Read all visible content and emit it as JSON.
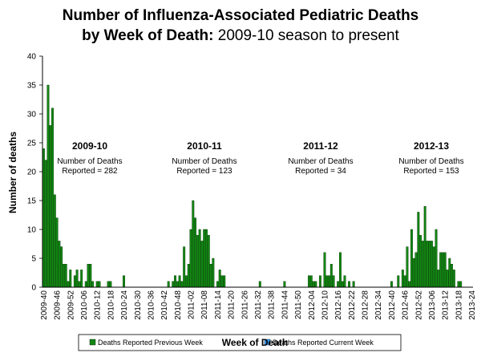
{
  "chart_data": {
    "type": "bar",
    "title": "Number of Influenza-Associated Pediatric Deaths",
    "subtitle_bold": "by Week of Death:",
    "subtitle": "2009-10 season to present",
    "x_label": "Week of Death",
    "y_label": "Number of deaths",
    "ylim": [
      0,
      40
    ],
    "yticks": [
      0,
      5,
      10,
      15,
      20,
      25,
      30,
      35,
      40
    ],
    "grid": false,
    "color": "#128712",
    "categories": [
      "2009-40",
      null,
      null,
      null,
      null,
      null,
      "2009-46",
      null,
      null,
      null,
      null,
      null,
      "2009-52",
      null,
      null,
      null,
      null,
      null,
      "2010-06",
      null,
      null,
      null,
      null,
      null,
      "2010-12",
      null,
      null,
      null,
      null,
      null,
      "2010-18",
      null,
      null,
      null,
      null,
      null,
      "2010-24",
      null,
      null,
      null,
      null,
      null,
      "2010-30",
      null,
      null,
      null,
      null,
      null,
      "2010-36",
      null,
      null,
      null,
      null,
      null,
      "2010-42",
      null,
      null,
      null,
      null,
      null,
      "2010-48",
      null,
      null,
      null,
      null,
      null,
      "2011-02",
      null,
      null,
      null,
      null,
      null,
      "2011-08",
      null,
      null,
      null,
      null,
      null,
      "2011-14",
      null,
      null,
      null,
      null,
      null,
      "2011-20",
      null,
      null,
      null,
      null,
      null,
      "2011-26",
      null,
      null,
      null,
      null,
      null,
      "2011-32",
      null,
      null,
      null,
      null,
      null,
      "2011-38",
      null,
      null,
      null,
      null,
      null,
      "2011-44",
      null,
      null,
      null,
      null,
      null,
      "2011-50",
      null,
      null,
      null,
      null,
      null,
      "2012-04",
      null,
      null,
      null,
      null,
      null,
      "2012-10",
      null,
      null,
      null,
      null,
      null,
      "2012-16",
      null,
      null,
      null,
      null,
      null,
      "2012-22",
      null,
      null,
      null,
      null,
      null,
      "2012-28",
      null,
      null,
      null,
      null,
      null,
      "2012-34",
      null,
      null,
      null,
      null,
      null,
      "2012-40",
      null,
      null,
      null,
      null,
      null,
      "2012-46",
      null,
      null,
      null,
      null,
      null,
      "2012-52",
      null,
      null,
      null,
      null,
      null,
      "2013-06",
      null,
      null,
      null,
      null,
      null,
      "2013-12",
      null,
      null,
      null,
      null,
      null,
      "2013-18",
      null,
      null,
      null,
      null,
      null,
      "2013-24"
    ],
    "values": [
      24,
      22,
      35,
      28,
      31,
      16,
      12,
      8,
      7,
      4,
      4,
      1,
      3,
      0,
      2,
      3,
      1,
      3,
      0,
      1,
      4,
      4,
      1,
      0,
      1,
      1,
      0,
      0,
      0,
      1,
      1,
      0,
      0,
      0,
      0,
      0,
      2,
      0,
      0,
      0,
      0,
      0,
      0,
      0,
      0,
      0,
      0,
      0,
      0,
      0,
      0,
      0,
      0,
      0,
      0,
      0,
      1,
      0,
      1,
      2,
      1,
      2,
      1,
      7,
      2,
      4,
      10,
      15,
      12,
      9,
      10,
      8,
      10,
      10,
      9,
      4,
      5,
      0,
      1,
      3,
      2,
      2,
      0,
      0,
      0,
      0,
      0,
      0,
      0,
      0,
      0,
      0,
      0,
      0,
      0,
      0,
      0,
      1,
      0,
      0,
      0,
      0,
      0,
      0,
      0,
      0,
      0,
      0,
      1,
      0,
      0,
      0,
      0,
      0,
      0,
      0,
      0,
      0,
      0,
      2,
      2,
      1,
      1,
      0,
      2,
      0,
      6,
      2,
      2,
      4,
      2,
      0,
      1,
      6,
      1,
      2,
      0,
      1,
      0,
      1,
      0,
      0,
      0,
      0,
      0,
      0,
      0,
      0,
      0,
      0,
      0,
      0,
      0,
      0,
      0,
      0,
      1,
      0,
      0,
      2,
      0,
      3,
      2,
      7,
      1,
      10,
      5,
      6,
      13,
      9,
      8,
      14,
      8,
      8,
      8,
      7,
      10,
      3,
      6,
      6,
      6,
      3,
      5,
      4,
      3,
      0,
      1,
      1,
      0,
      0,
      0,
      0,
      0
    ],
    "annotations": [
      {
        "title": "2009-10",
        "lines": [
          "Number of Deaths",
          "Reported = 282"
        ]
      },
      {
        "title": "2010-11",
        "lines": [
          "Number of Deaths",
          "Reported = 123"
        ]
      },
      {
        "title": "2011-12",
        "lines": [
          "Number of Deaths",
          "Reported = 34"
        ]
      },
      {
        "title": "2012-13",
        "lines": [
          "Number of Deaths",
          "Reported = 153"
        ]
      }
    ],
    "legend": [
      {
        "name": "Deaths Reported Previous Week",
        "color": "#128712"
      },
      {
        "name": "Deaths Reported Current Week",
        "color": "#33a0ff"
      }
    ]
  }
}
